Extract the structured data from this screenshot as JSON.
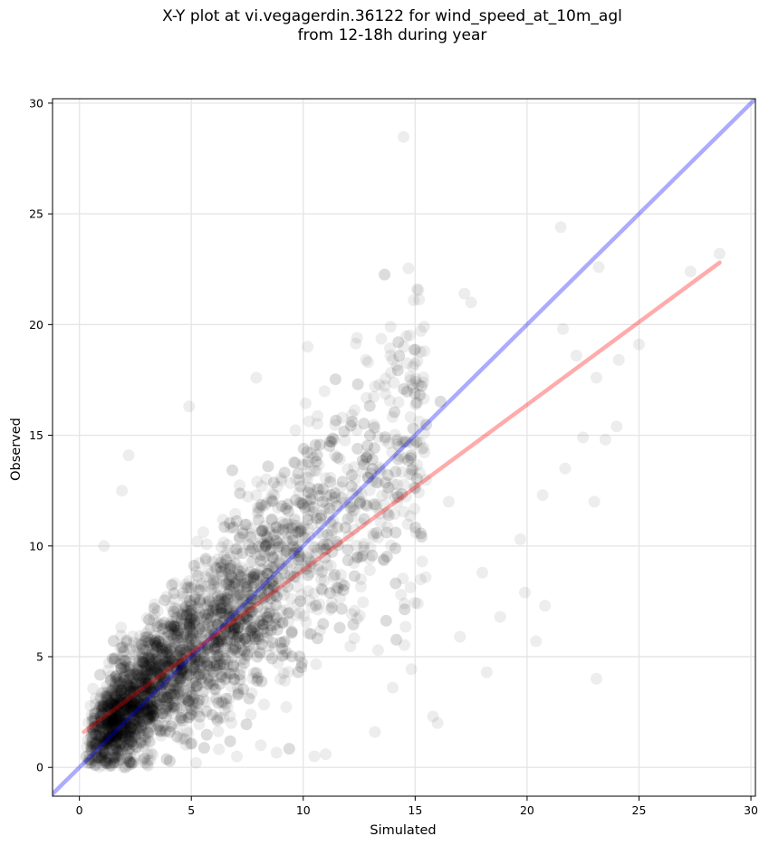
{
  "chart_data": {
    "type": "scatter",
    "title": "X-Y plot at vi.vegagerdin.36122 for wind_speed_at_10m_agl",
    "subtitle": "from 12-18h during year",
    "xlabel": "Simulated",
    "ylabel": "Observed",
    "xlim": [
      -1.2,
      30.2
    ],
    "ylim": [
      -1.3,
      30.2
    ],
    "xticks": [
      0,
      5,
      10,
      15,
      20,
      25,
      30
    ],
    "yticks": [
      0,
      5,
      10,
      15,
      20,
      25,
      30
    ],
    "grid": true,
    "legend": "none",
    "colors": {
      "points": "#000000",
      "identity_line": "#0000ff",
      "fit_line": "#ff0000",
      "grid": "#e6e6e6"
    },
    "lines": [
      {
        "role": "identity",
        "x": [
          -1.2,
          30.2
        ],
        "y": [
          -1.2,
          30.2
        ]
      },
      {
        "role": "fit",
        "x": [
          0.2,
          28.6
        ],
        "y": [
          1.6,
          22.8
        ]
      }
    ],
    "outliers": [
      {
        "x": 21.5,
        "y": 24.4
      },
      {
        "x": 28.6,
        "y": 23.2
      },
      {
        "x": 23.2,
        "y": 22.6
      },
      {
        "x": 27.3,
        "y": 22.4
      },
      {
        "x": 17.2,
        "y": 21.4
      },
      {
        "x": 17.5,
        "y": 21.0
      },
      {
        "x": 25.0,
        "y": 19.1
      },
      {
        "x": 24.1,
        "y": 18.4
      },
      {
        "x": 21.6,
        "y": 19.8
      },
      {
        "x": 22.2,
        "y": 18.6
      },
      {
        "x": 23.1,
        "y": 17.6
      },
      {
        "x": 24.0,
        "y": 15.4
      },
      {
        "x": 23.5,
        "y": 14.8
      },
      {
        "x": 22.5,
        "y": 14.9
      },
      {
        "x": 21.7,
        "y": 13.5
      },
      {
        "x": 20.7,
        "y": 12.3
      },
      {
        "x": 23.0,
        "y": 12.0
      },
      {
        "x": 20.8,
        "y": 7.3
      },
      {
        "x": 20.4,
        "y": 5.7
      },
      {
        "x": 19.9,
        "y": 7.9
      },
      {
        "x": 19.7,
        "y": 10.3
      },
      {
        "x": 18.8,
        "y": 6.8
      },
      {
        "x": 18.2,
        "y": 4.3
      },
      {
        "x": 23.1,
        "y": 4.0
      },
      {
        "x": 16.0,
        "y": 2.0
      },
      {
        "x": 15.8,
        "y": 2.3
      },
      {
        "x": 13.2,
        "y": 1.6
      },
      {
        "x": 10.5,
        "y": 0.5
      },
      {
        "x": 11.0,
        "y": 0.6
      },
      {
        "x": 4.9,
        "y": 16.3
      },
      {
        "x": 2.2,
        "y": 14.1
      },
      {
        "x": 7.9,
        "y": 17.6
      },
      {
        "x": 10.2,
        "y": 19.0
      },
      {
        "x": 13.9,
        "y": 19.9
      },
      {
        "x": 15.4,
        "y": 19.9
      },
      {
        "x": 12.8,
        "y": 18.4
      },
      {
        "x": 1.9,
        "y": 12.5
      },
      {
        "x": 1.1,
        "y": 10.0
      },
      {
        "x": 16.5,
        "y": 12.0
      },
      {
        "x": 18.0,
        "y": 8.8
      },
      {
        "x": 17.0,
        "y": 5.9
      },
      {
        "x": 14.0,
        "y": 3.6
      }
    ],
    "dense_cloud_note": "thousands of semi-transparent points clustered along y ≈ x, densest between 0 and 6"
  }
}
